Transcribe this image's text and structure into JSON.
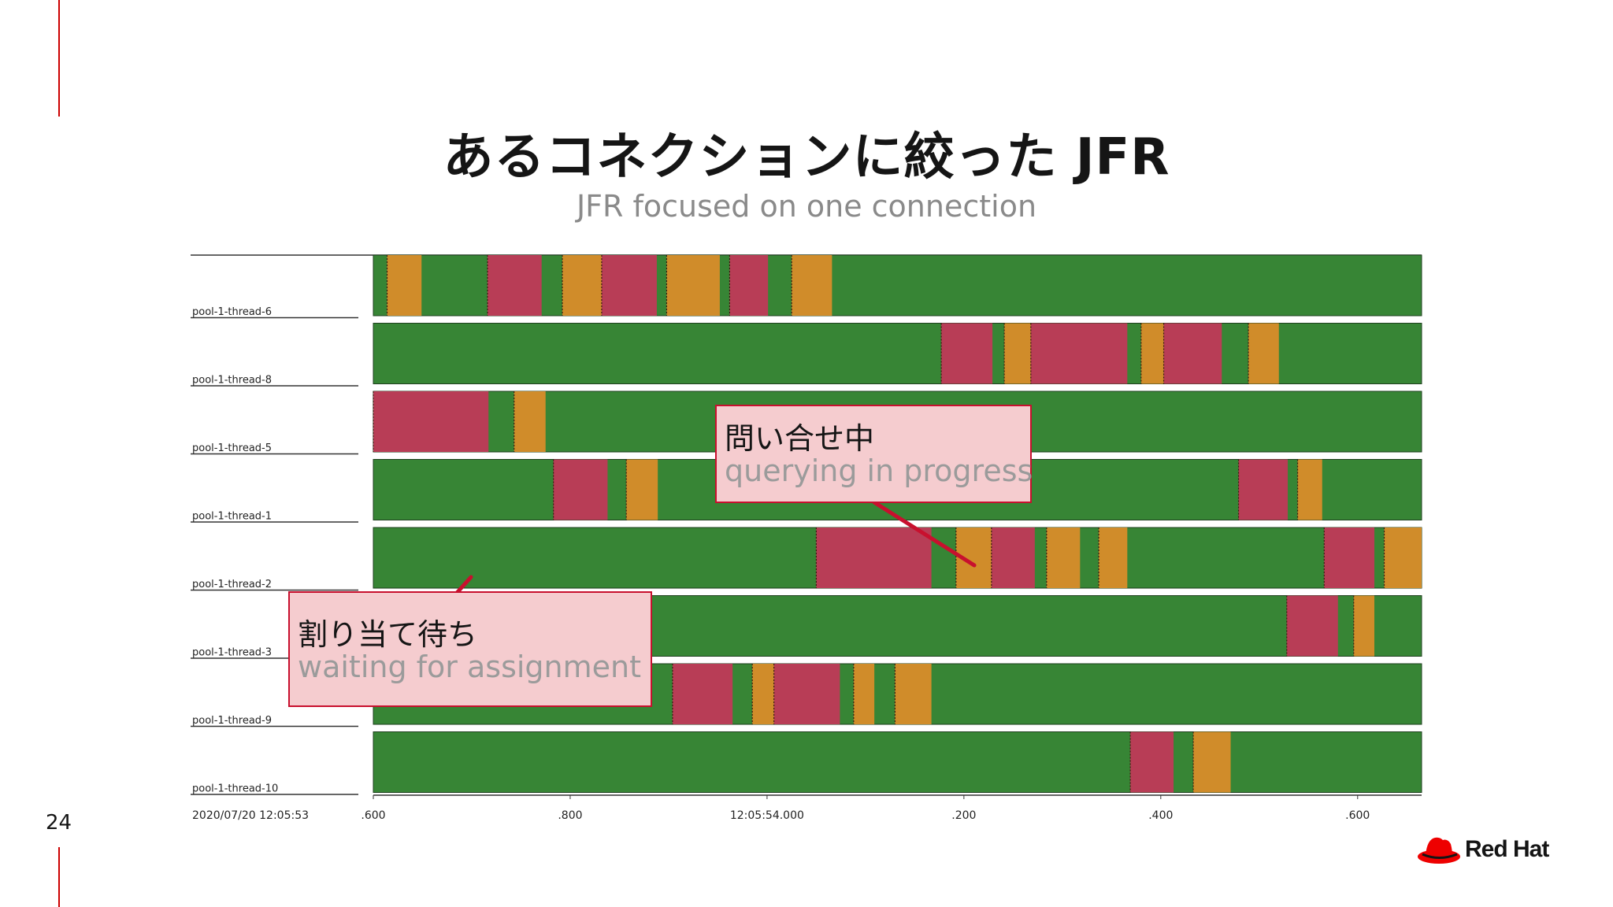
{
  "slide": {
    "title": "あるコネクションに絞った JFR",
    "subtitle": "JFR focused on one connection",
    "page_number": "24",
    "logo_text": "Red Hat",
    "accent_color": "#cc0000"
  },
  "colors": {
    "running": "#378535",
    "waiting": "#b83d56",
    "blocked": "#d08c2a",
    "callout_bg": "#f5cccf",
    "callout_border": "#c8102e"
  },
  "chart_data": {
    "type": "timeline",
    "x_start_label": "2020/07/20 12:05:53",
    "x_ticks": [
      ".600",
      ".800",
      "12:05:54.000",
      ".200",
      ".400",
      ".600"
    ],
    "x_range": [
      0.6,
      1.665
    ],
    "rows": [
      {
        "label": "pool-1-thread-6",
        "segments": [
          {
            "state": "blocked",
            "start": 0.614,
            "end": 0.649
          },
          {
            "state": "waiting",
            "start": 0.716,
            "end": 0.771
          },
          {
            "state": "blocked",
            "start": 0.792,
            "end": 0.832
          },
          {
            "state": "waiting",
            "start": 0.832,
            "end": 0.888
          },
          {
            "state": "blocked",
            "start": 0.898,
            "end": 0.952
          },
          {
            "state": "waiting",
            "start": 0.962,
            "end": 1.001
          },
          {
            "state": "blocked",
            "start": 1.025,
            "end": 1.066
          }
        ]
      },
      {
        "label": "pool-1-thread-8",
        "segments": [
          {
            "state": "waiting",
            "start": 1.177,
            "end": 1.229
          },
          {
            "state": "blocked",
            "start": 1.241,
            "end": 1.268
          },
          {
            "state": "waiting",
            "start": 1.268,
            "end": 1.366
          },
          {
            "state": "blocked",
            "start": 1.38,
            "end": 1.403
          },
          {
            "state": "waiting",
            "start": 1.403,
            "end": 1.462
          },
          {
            "state": "blocked",
            "start": 1.489,
            "end": 1.52
          }
        ]
      },
      {
        "label": "pool-1-thread-5",
        "segments": [
          {
            "state": "waiting",
            "start": 0.6,
            "end": 0.717
          },
          {
            "state": "blocked",
            "start": 0.743,
            "end": 0.775
          }
        ]
      },
      {
        "label": "pool-1-thread-1",
        "segments": [
          {
            "state": "waiting",
            "start": 0.783,
            "end": 0.838
          },
          {
            "state": "blocked",
            "start": 0.857,
            "end": 0.889
          },
          {
            "state": "waiting",
            "start": 1.479,
            "end": 1.529
          },
          {
            "state": "blocked",
            "start": 1.539,
            "end": 1.564
          }
        ]
      },
      {
        "label": "pool-1-thread-2",
        "segments": [
          {
            "state": "waiting",
            "start": 1.05,
            "end": 1.167
          },
          {
            "state": "blocked",
            "start": 1.192,
            "end": 1.228
          },
          {
            "state": "waiting",
            "start": 1.228,
            "end": 1.272
          },
          {
            "state": "blocked",
            "start": 1.284,
            "end": 1.318
          },
          {
            "state": "blocked",
            "start": 1.337,
            "end": 1.366
          },
          {
            "state": "waiting",
            "start": 1.566,
            "end": 1.617
          },
          {
            "state": "blocked",
            "start": 1.627,
            "end": 1.665
          }
        ]
      },
      {
        "label": "pool-1-thread-3",
        "segments": [
          {
            "state": "waiting",
            "start": 1.528,
            "end": 1.58
          },
          {
            "state": "blocked",
            "start": 1.596,
            "end": 1.617
          }
        ]
      },
      {
        "label": "pool-1-thread-9",
        "segments": [
          {
            "state": "waiting",
            "start": 0.904,
            "end": 0.965
          },
          {
            "state": "blocked",
            "start": 0.985,
            "end": 1.007
          },
          {
            "state": "waiting",
            "start": 1.007,
            "end": 1.074
          },
          {
            "state": "blocked",
            "start": 1.088,
            "end": 1.109
          },
          {
            "state": "blocked",
            "start": 1.13,
            "end": 1.167
          }
        ]
      },
      {
        "label": "pool-1-thread-10",
        "segments": [
          {
            "state": "waiting",
            "start": 1.369,
            "end": 1.413
          },
          {
            "state": "blocked",
            "start": 1.433,
            "end": 1.471
          }
        ]
      }
    ]
  },
  "callouts": [
    {
      "id": "query",
      "ja": "問い合せ中",
      "en": "querying in progress"
    },
    {
      "id": "assign",
      "ja": "割り当て待ち",
      "en": "waiting for assignment"
    }
  ]
}
